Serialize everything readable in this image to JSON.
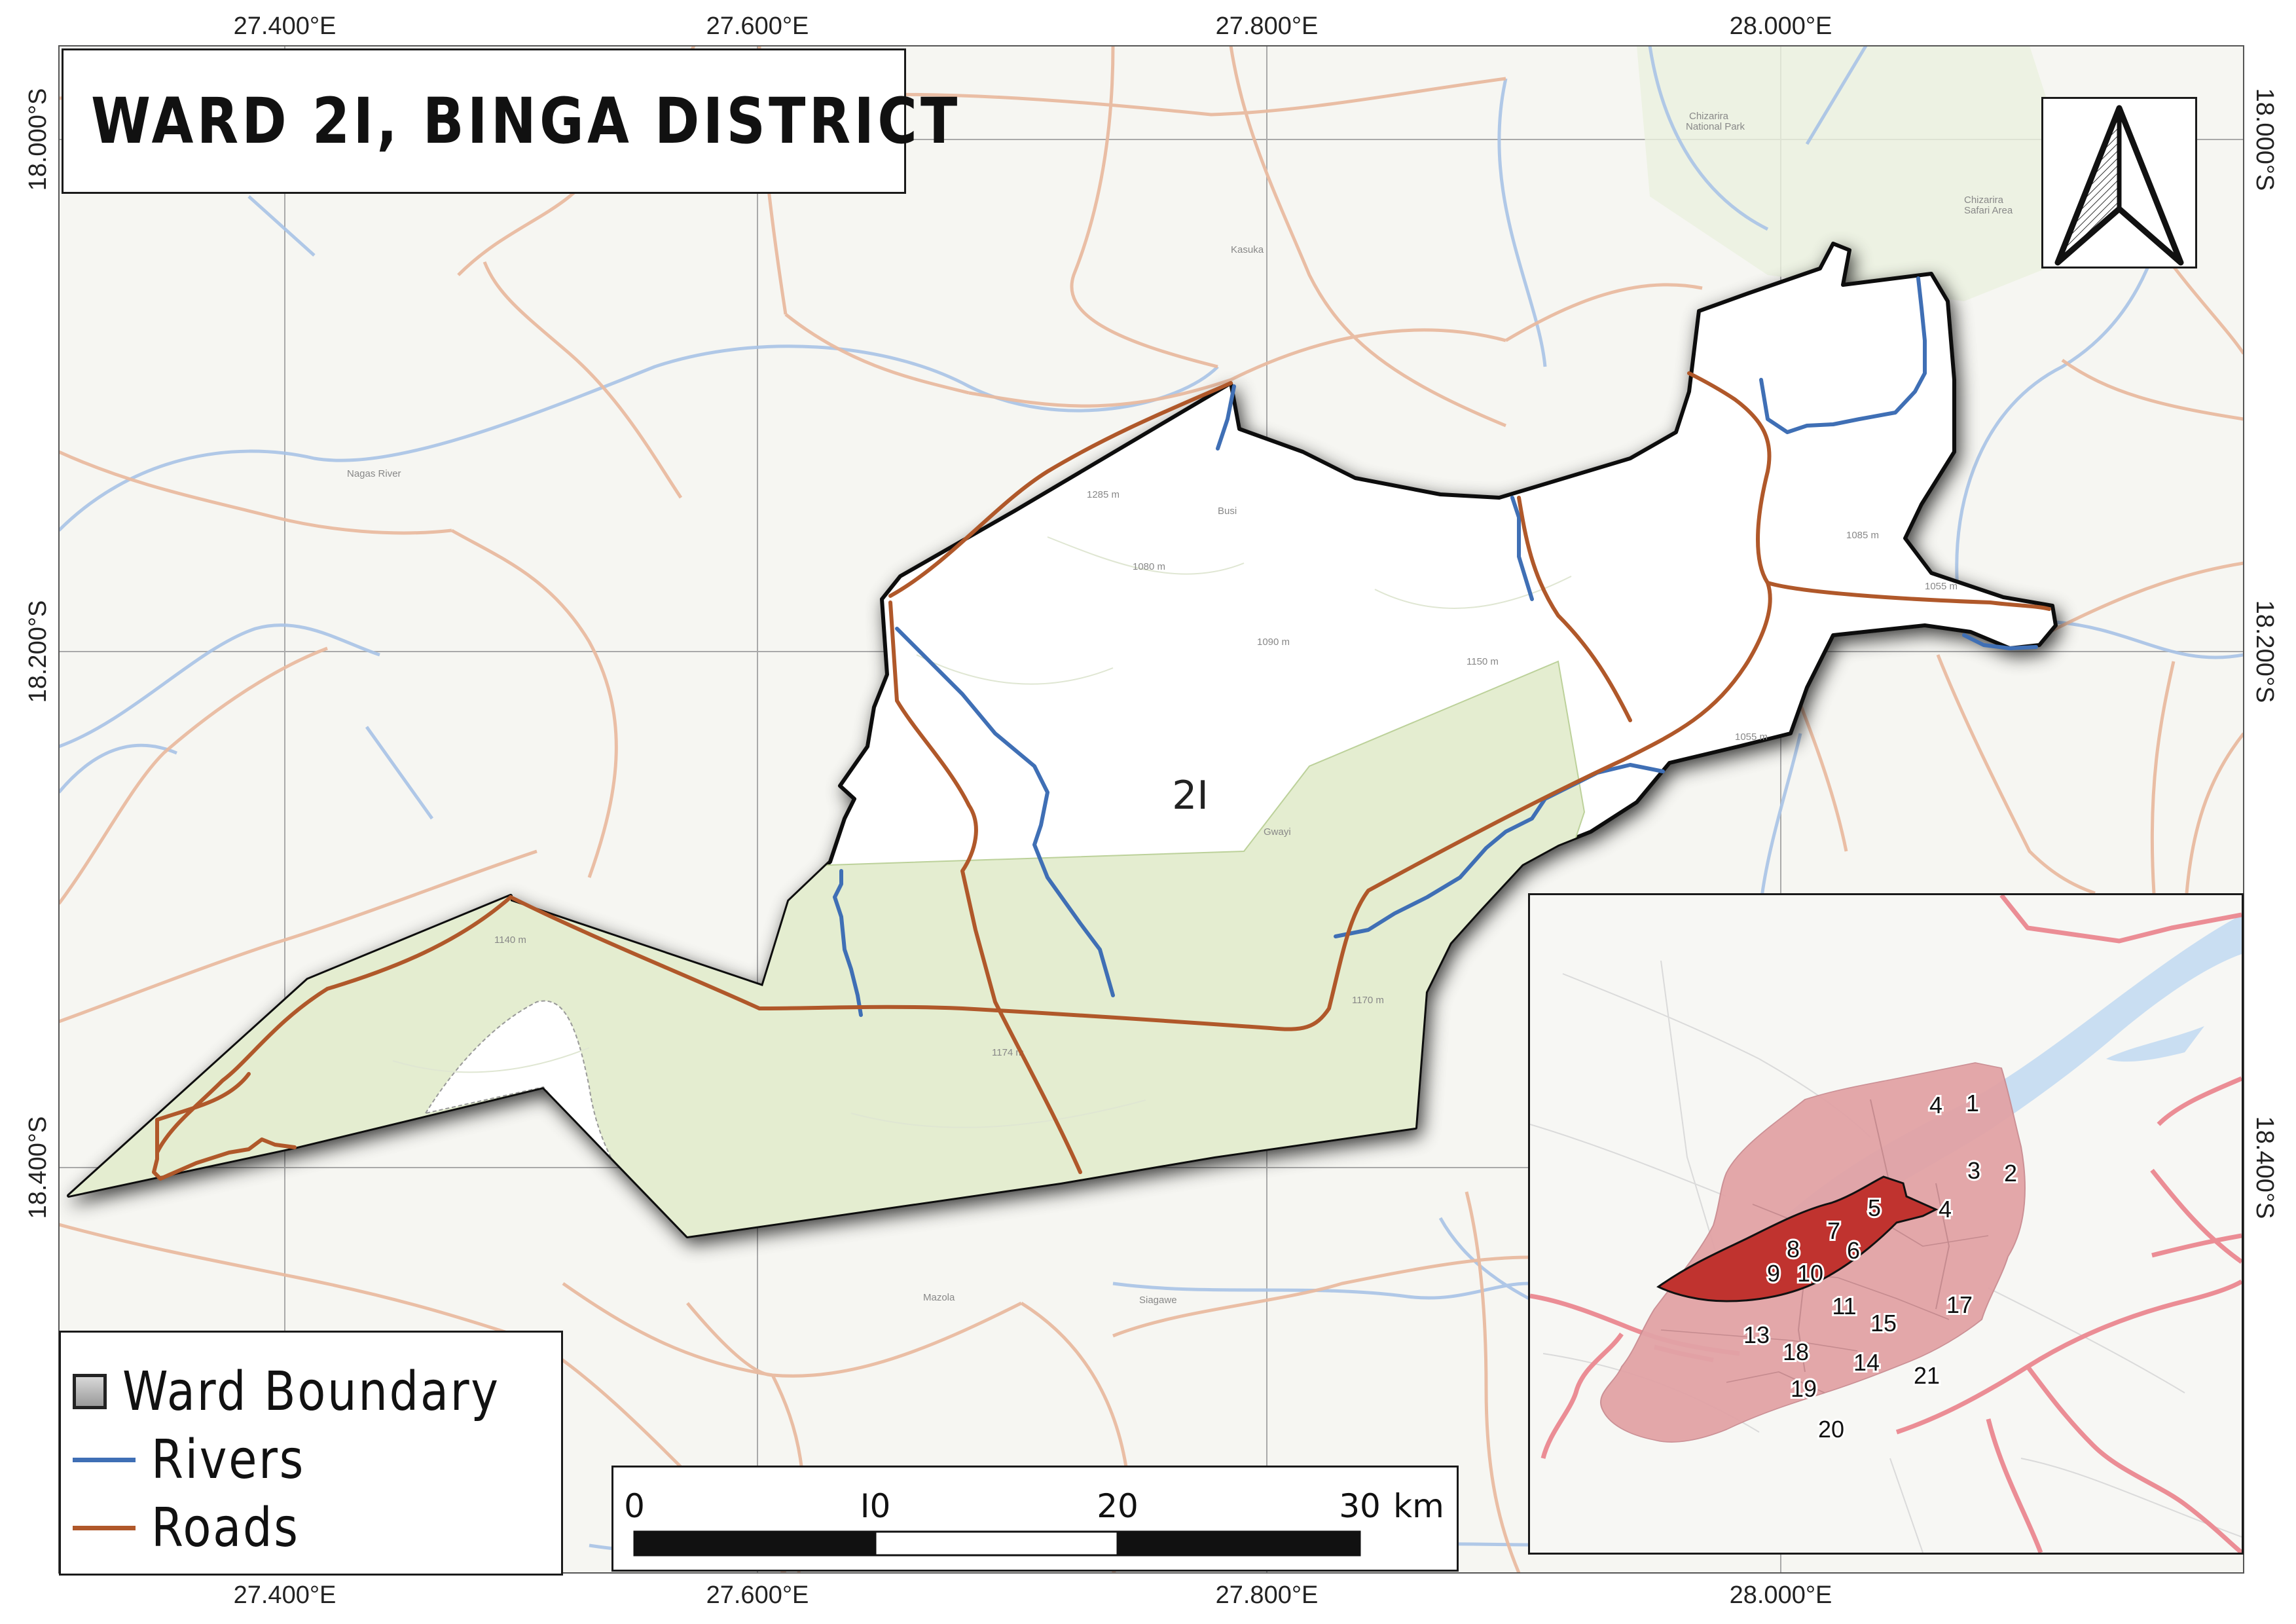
{
  "title": "WARD 2I, BINGA DISTRICT",
  "ward_label": "2I",
  "coordinates": {
    "top": [
      "27.400°E",
      "27.600°E",
      "27.800°E",
      "28.000°E"
    ],
    "bottom": [
      "27.400°E",
      "27.600°E",
      "27.800°E",
      "28.000°E"
    ],
    "left": [
      "18.000°S",
      "18.200°S",
      "18.400°S"
    ],
    "right": [
      "18.000°S",
      "18.200°S",
      "18.400°S"
    ]
  },
  "legend": {
    "items": [
      {
        "label": "Ward Boundary",
        "type": "polygon"
      },
      {
        "label": "Rivers",
        "type": "line",
        "color": "#3f6fb5"
      },
      {
        "label": "Roads",
        "type": "line",
        "color": "#b0582a"
      }
    ]
  },
  "scale_bar": {
    "labels": [
      "0",
      "I0",
      "20",
      "30"
    ],
    "unit": "km"
  },
  "north_arrow": {
    "icon": "north-arrow-icon"
  },
  "inset": {
    "ward_labels": [
      "1",
      "2",
      "3",
      "4",
      "4",
      "5",
      "6",
      "7",
      "8",
      "9",
      "10",
      "11",
      "13",
      "14",
      "15",
      "17",
      "18",
      "19",
      "20",
      "21"
    ],
    "highlight_ward": "21",
    "colors": {
      "district_fill": "#e2a3a6",
      "highlight_fill": "#c0332f",
      "roads": "#eb8d95",
      "water": "#c9def2"
    }
  },
  "colors": {
    "ward_fill": "#ffffff",
    "protected_area": "#e4edd0",
    "boundary": "#111111",
    "river": "#3f6fb5",
    "road": "#b0582a",
    "basemap_road": "#e9bba0",
    "basemap_river": "#a8c3e6"
  }
}
